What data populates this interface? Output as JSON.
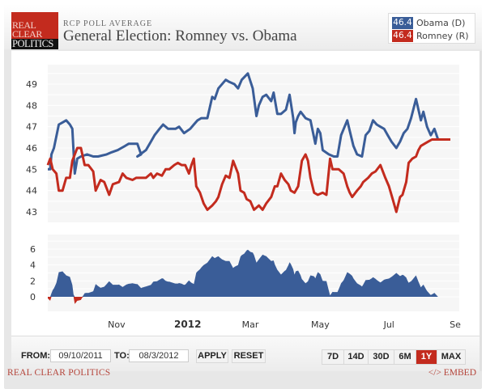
{
  "header": {
    "logo_lines": [
      "REAL",
      "CLEAR",
      "POLITICS"
    ],
    "kicker": "RCP POLL AVERAGE",
    "title": "General Election: Romney vs. Obama"
  },
  "legend": [
    {
      "value": "46.4",
      "name": "Obama (D)",
      "color": "#3a5d98"
    },
    {
      "value": "46.4",
      "name": "Romney (R)",
      "color": "#c32b1e"
    }
  ],
  "controls": {
    "from_label": "FROM:",
    "from_value": "09/10/2011",
    "to_label": "TO:",
    "to_value": "08/3/2012",
    "apply_label": "APPLY",
    "reset_label": "RESET",
    "ranges": [
      {
        "label": "7D",
        "active": false
      },
      {
        "label": "14D",
        "active": false
      },
      {
        "label": "30D",
        "active": false
      },
      {
        "label": "6M",
        "active": false
      },
      {
        "label": "1Y",
        "active": true
      },
      {
        "label": "MAX",
        "active": false
      }
    ]
  },
  "footer": {
    "left": "REAL CLEAR POLITICS",
    "right": "</> EMBED"
  },
  "colors": {
    "obama": "#3a5d98",
    "romney": "#c32b1e",
    "plot_bg": "#f6f6f6",
    "grid": "#ffffff"
  },
  "chart_data": [
    {
      "type": "line",
      "title": "General Election: Romney vs. Obama",
      "xlabel": "",
      "ylabel": "",
      "x_unit": "days since 2011-09-10",
      "x_range": [
        0,
        328
      ],
      "x_tick_labels": [
        {
          "label": "Nov",
          "day": 56,
          "bold": false
        },
        {
          "label": "2012",
          "day": 114,
          "bold": true
        },
        {
          "label": "Mar",
          "day": 165,
          "bold": false
        },
        {
          "label": "May",
          "day": 222,
          "bold": false
        },
        {
          "label": "Jul",
          "day": 278,
          "bold": false
        },
        {
          "label": "Se",
          "day": 332,
          "bold": false
        }
      ],
      "ylim": [
        42.5,
        50.2
      ],
      "y_ticks": [
        43,
        44,
        45,
        46,
        47,
        48,
        49
      ],
      "grid": true,
      "legend_position": "top-right",
      "series": [
        {
          "name": "Obama (D)",
          "color": "#3a5d98",
          "x": [
            0,
            2,
            3,
            5,
            9,
            12,
            15,
            18,
            20,
            22,
            24,
            27,
            32,
            37,
            41,
            48,
            52,
            57,
            60,
            63,
            66,
            73,
            76,
            73,
            80,
            84,
            87,
            91,
            94,
            98,
            104,
            107,
            111,
            116,
            119,
            122,
            125,
            130,
            134,
            136,
            139,
            145,
            148,
            152,
            155,
            158,
            163,
            167,
            170,
            172,
            175,
            178,
            182,
            184,
            187,
            190,
            194,
            197,
            200,
            201,
            202,
            204,
            206,
            210,
            214,
            218,
            220,
            222,
            224,
            229,
            233,
            236,
            239,
            244,
            246,
            249,
            252,
            256,
            259,
            262,
            265,
            268,
            271,
            274,
            277,
            280,
            284,
            287,
            290,
            293,
            296,
            300,
            302,
            304,
            306,
            309,
            312,
            315,
            318,
            321,
            324,
            328
          ],
          "values": [
            45.0,
            45.0,
            45.7,
            46.0,
            47.1,
            47.2,
            47.3,
            47.1,
            46.9,
            44.8,
            45.5,
            45.6,
            45.7,
            45.6,
            45.6,
            45.7,
            45.8,
            45.9,
            46.0,
            46.1,
            46.2,
            46.2,
            45.7,
            45.6,
            45.9,
            46.3,
            46.6,
            46.9,
            47.1,
            46.9,
            46.9,
            47.0,
            46.7,
            46.9,
            47.1,
            47.3,
            47.4,
            47.4,
            48.4,
            48.3,
            48.8,
            49.2,
            49.1,
            49.0,
            48.8,
            49.2,
            49.5,
            48.8,
            47.5,
            48.0,
            48.4,
            48.5,
            48.2,
            48.6,
            47.6,
            47.6,
            47.8,
            48.5,
            47.4,
            46.7,
            47.2,
            47.5,
            47.7,
            47.4,
            47.3,
            46.2,
            46.9,
            46.7,
            45.9,
            45.7,
            45.6,
            45.6,
            46.6,
            47.3,
            46.8,
            46.1,
            45.7,
            45.6,
            46.6,
            46.8,
            47.3,
            47.1,
            47.0,
            46.9,
            46.6,
            46.3,
            46.0,
            46.3,
            46.7,
            46.9,
            47.4,
            48.3,
            47.8,
            47.3,
            47.7,
            47.0,
            46.6,
            46.9,
            46.4,
            46.4,
            46.4,
            46.4
          ]
        },
        {
          "name": "Romney (R)",
          "color": "#c32b1e",
          "x": [
            0,
            2,
            4,
            7,
            9,
            12,
            15,
            18,
            20,
            24,
            27,
            30,
            33,
            37,
            39,
            43,
            46,
            50,
            53,
            58,
            61,
            64,
            69,
            72,
            75,
            80,
            84,
            86,
            89,
            93,
            96,
            99,
            103,
            106,
            109,
            112,
            115,
            117,
            119,
            121,
            124,
            127,
            130,
            134,
            137,
            139,
            142,
            145,
            148,
            151,
            155,
            157,
            160,
            162,
            165,
            168,
            172,
            175,
            178,
            182,
            185,
            187,
            190,
            193,
            196,
            198,
            201,
            204,
            207,
            210,
            212,
            214,
            217,
            220,
            224,
            227,
            230,
            232,
            235,
            237,
            241,
            244,
            246,
            248,
            252,
            255,
            257,
            261,
            264,
            267,
            271,
            275,
            278,
            281,
            284,
            287,
            289,
            292,
            294,
            297,
            300,
            302,
            304,
            307,
            310,
            313,
            316,
            320,
            322,
            325,
            328
          ],
          "values": [
            45.2,
            45.5,
            45.0,
            44.8,
            44.0,
            44.0,
            44.6,
            44.6,
            45.4,
            46.0,
            46.0,
            45.2,
            45.2,
            44.9,
            44.0,
            44.5,
            44.4,
            43.8,
            44.3,
            44.4,
            44.8,
            44.6,
            44.5,
            44.6,
            44.6,
            44.6,
            44.8,
            44.6,
            44.8,
            44.7,
            45.0,
            45.0,
            45.2,
            45.3,
            45.2,
            45.2,
            44.8,
            45.2,
            45.5,
            44.2,
            43.9,
            43.4,
            43.1,
            43.3,
            43.5,
            43.7,
            44.3,
            44.7,
            44.6,
            45.4,
            44.8,
            44.0,
            43.9,
            43.6,
            43.5,
            43.1,
            43.3,
            43.1,
            43.4,
            43.7,
            44.2,
            44.2,
            44.8,
            44.5,
            44.3,
            44.0,
            43.9,
            44.2,
            45.4,
            45.7,
            45.4,
            44.6,
            43.9,
            43.8,
            43.9,
            43.8,
            45.5,
            45.0,
            45.0,
            45.0,
            44.8,
            44.2,
            43.9,
            43.7,
            44.0,
            44.2,
            44.4,
            44.6,
            44.8,
            44.9,
            45.2,
            44.6,
            44.2,
            43.6,
            43.0,
            43.7,
            43.8,
            44.4,
            45.3,
            45.5,
            45.6,
            45.9,
            46.1,
            46.2,
            46.3,
            46.4,
            46.4,
            46.4,
            46.4,
            46.4,
            46.4
          ]
        }
      ]
    },
    {
      "type": "area",
      "title": "Spread (Obama - Romney)",
      "derived_from": "Obama (D) minus Romney (R)",
      "ylim": [
        -1.8,
        7.5
      ],
      "y_ticks": [
        0,
        2,
        4,
        6
      ],
      "positive_color": "#3a5d98",
      "negative_color": "#c32b1e",
      "grid": true
    }
  ]
}
